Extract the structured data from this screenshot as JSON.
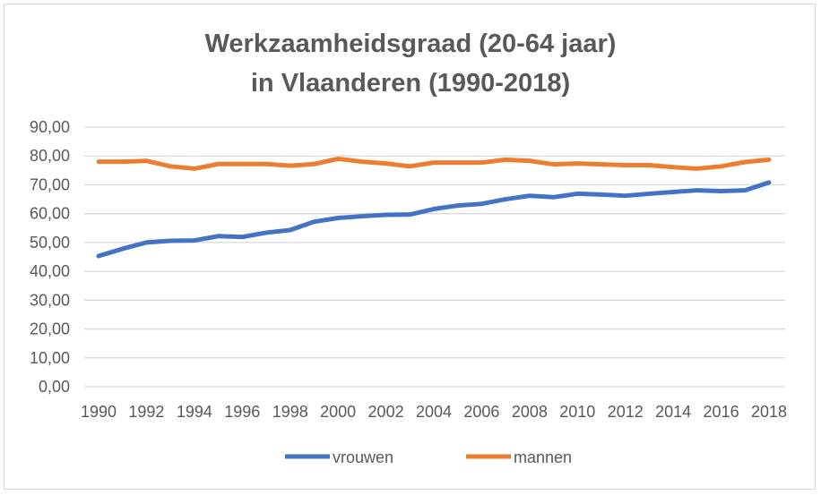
{
  "chart_data": {
    "type": "line",
    "title": [
      "Werkzaamheidsgraad (20-64 jaar)",
      "in Vlaanderen (1990-2018)"
    ],
    "xlabel": "",
    "ylabel": "",
    "x": [
      1990,
      1991,
      1992,
      1993,
      1994,
      1995,
      1996,
      1997,
      1998,
      1999,
      2000,
      2001,
      2002,
      2003,
      2004,
      2005,
      2006,
      2007,
      2008,
      2009,
      2010,
      2011,
      2012,
      2013,
      2014,
      2015,
      2016,
      2017,
      2018
    ],
    "x_tick_labels": [
      "1990",
      "1992",
      "1994",
      "1996",
      "1998",
      "2000",
      "2002",
      "2004",
      "2006",
      "2008",
      "2010",
      "2012",
      "2014",
      "2016",
      "2018"
    ],
    "y_tick_labels": [
      "0,00",
      "10,00",
      "20,00",
      "30,00",
      "40,00",
      "50,00",
      "60,00",
      "70,00",
      "80,00",
      "90,00"
    ],
    "ylim": [
      0,
      90
    ],
    "grid": true,
    "legend_position": "bottom",
    "series": [
      {
        "name": "vrouwen",
        "color": "#4472c4",
        "values": [
          45.3,
          47.8,
          50.0,
          50.6,
          50.7,
          52.2,
          51.9,
          53.4,
          54.3,
          57.2,
          58.5,
          59.1,
          59.6,
          59.7,
          61.6,
          62.8,
          63.4,
          65.0,
          66.2,
          65.7,
          66.9,
          66.6,
          66.2,
          66.9,
          67.5,
          68.1,
          67.8,
          68.1,
          70.8
        ]
      },
      {
        "name": "mannen",
        "color": "#ed7d31",
        "values": [
          78.0,
          78.0,
          78.3,
          76.4,
          75.6,
          77.2,
          77.2,
          77.2,
          76.6,
          77.2,
          79.0,
          78.0,
          77.4,
          76.4,
          77.7,
          77.7,
          77.7,
          78.7,
          78.3,
          77.1,
          77.4,
          77.1,
          76.8,
          76.8,
          76.1,
          75.6,
          76.4,
          77.9,
          78.7
        ]
      }
    ]
  }
}
